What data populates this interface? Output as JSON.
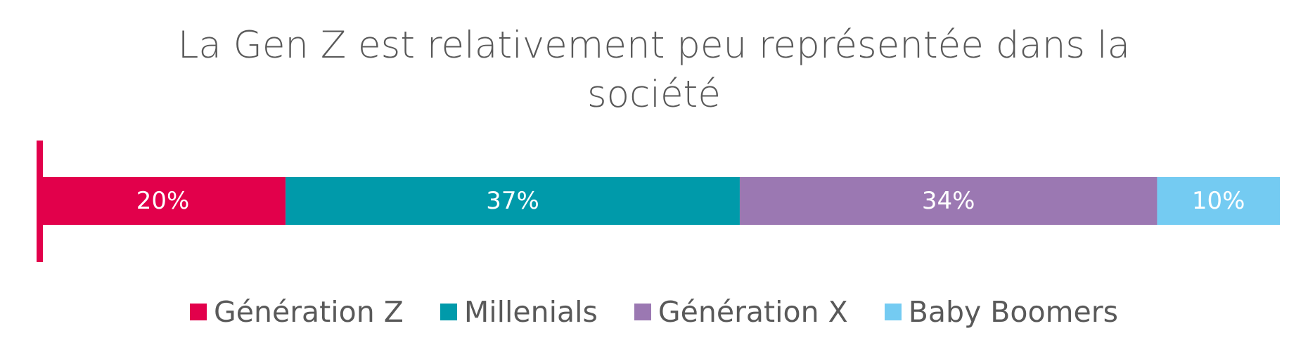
{
  "chart_data": {
    "type": "bar",
    "orientation": "horizontal",
    "stacked": true,
    "title": "La Gen Z est relativement peu représentée dans la société",
    "title_lines": [
      "La Gen Z est relativement peu représentée dans la",
      "société"
    ],
    "categories": [
      ""
    ],
    "series": [
      {
        "name": "Génération Z",
        "values": [
          20
        ],
        "label": "20%",
        "color": "#e2004b"
      },
      {
        "name": "Millenials",
        "values": [
          37
        ],
        "label": "37%",
        "color": "#009aaa"
      },
      {
        "name": "Génération X",
        "values": [
          34
        ],
        "label": "34%",
        "color": "#9b78b2"
      },
      {
        "name": "Baby Boomers",
        "values": [
          10
        ],
        "label": "10%",
        "color": "#74cbf2"
      }
    ],
    "xlim": [
      0,
      101
    ],
    "grid": false,
    "legend_position": "bottom",
    "axis_color": "#e2004b",
    "label_color": "#ffffff"
  }
}
